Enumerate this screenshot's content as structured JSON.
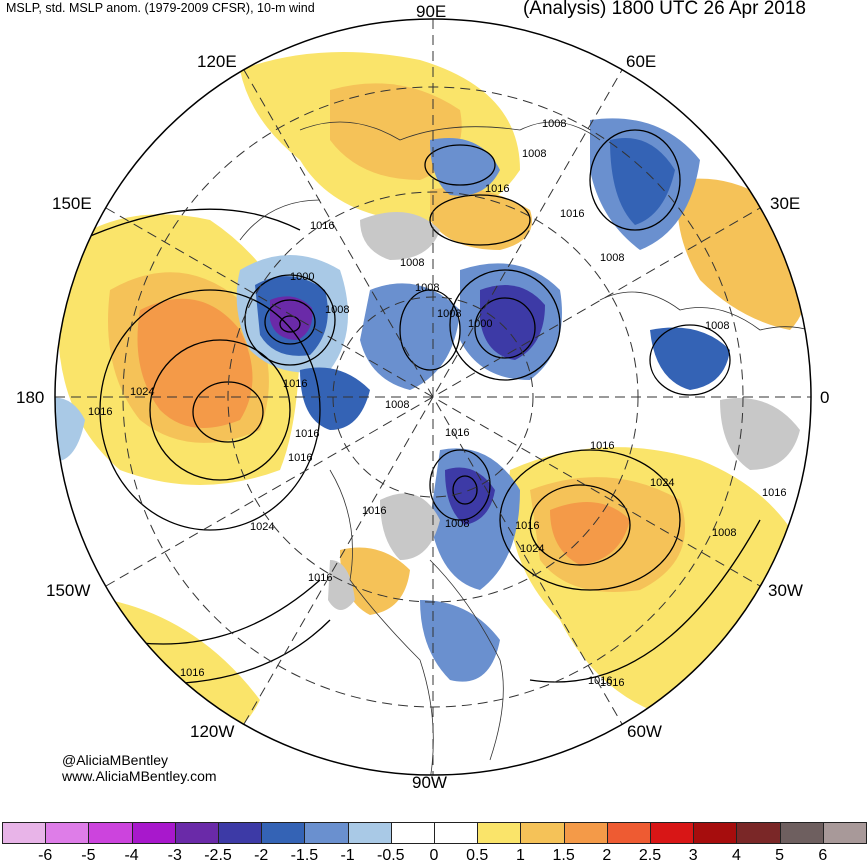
{
  "header": {
    "left": "MSLP, std. MSLP anom. (1979-2009 CFSR), 10-m wind",
    "right": "(Analysis) 1800 UTC 26 Apr 2018"
  },
  "longitude_labels": {
    "e90": "90E",
    "e60": "60E",
    "e120": "120E",
    "e150": "150E",
    "e30": "30E",
    "w180": "180",
    "zero": "0",
    "w150": "150W",
    "w30": "30W",
    "w120": "120W",
    "w60": "60W",
    "w90": "90W"
  },
  "isobar_labels": [
    "1008",
    "1008",
    "1016",
    "1016",
    "1016",
    "1008",
    "1008",
    "1008",
    "1000",
    "1008",
    "1008",
    "1000",
    "1008",
    "1016",
    "1024",
    "1016",
    "1008",
    "1016",
    "1016",
    "1016",
    "1016",
    "1024",
    "1024",
    "1016",
    "1008",
    "1016",
    "1024",
    "1016",
    "1008",
    "1016",
    "1016",
    "1016",
    "1016"
  ],
  "credit": {
    "handle": "@AliciaMBentley",
    "website": "www.AliciaMBentley.com"
  },
  "colorbar": {
    "labels": [
      "-6",
      "-5",
      "-4",
      "-3",
      "-2.5",
      "-2",
      "-1.5",
      "-1",
      "-0.5",
      "0",
      "0.5",
      "1",
      "1.5",
      "2",
      "2.5",
      "3",
      "4",
      "5",
      "6"
    ],
    "colors": [
      "#e8b4e8",
      "#de7de8",
      "#cc44dd",
      "#a818cc",
      "#6a2aa8",
      "#3d3aa6",
      "#3463b5",
      "#6a90cf",
      "#a9c9e6",
      "#ffffff",
      "#ffffff",
      "#fae46a",
      "#f5c258",
      "#f49a48",
      "#ee5b32",
      "#d81616",
      "#a60d0d",
      "#7a2727",
      "#6e5f5f",
      "#a89999"
    ]
  }
}
